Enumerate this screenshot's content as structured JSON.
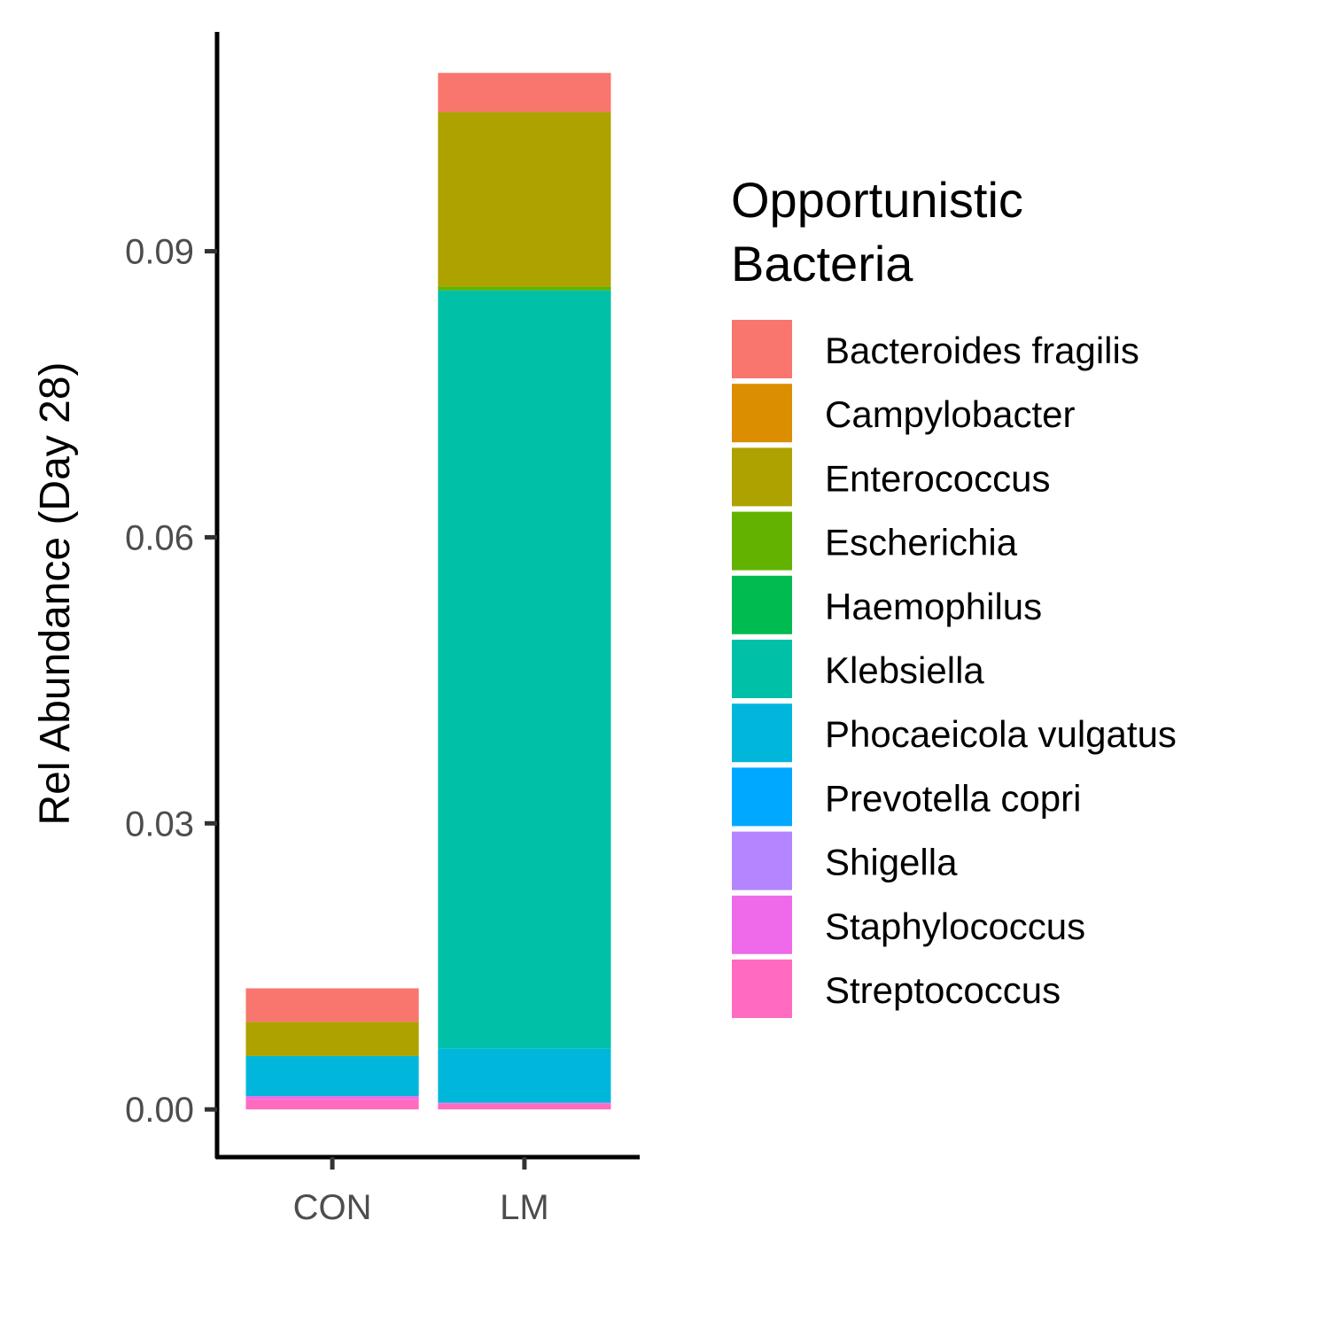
{
  "chart_data": {
    "type": "bar",
    "stacked": true,
    "categories": [
      "CON",
      "LM"
    ],
    "ylabel": "Rel Abundance (Day 28)",
    "xlabel": "",
    "ylim": [
      -0.005,
      0.113
    ],
    "yticks": [
      "0.00",
      "0.03",
      "0.06",
      "0.09"
    ],
    "grid": false,
    "legend": {
      "title_lines": [
        "Opportunistic",
        "Bacteria"
      ],
      "position": "right"
    },
    "series": [
      {
        "name": "Streptococcus",
        "color": "#FF6BC0",
        "values": [
          0.0011,
          0.0006
        ]
      },
      {
        "name": "Staphylococcus",
        "color": "#EE6AEB",
        "values": [
          0.0003,
          0.0001
        ]
      },
      {
        "name": "Shigella",
        "color": "#B385FF",
        "values": [
          0.0,
          0.0
        ]
      },
      {
        "name": "Prevotella copri",
        "color": "#00A8FF",
        "values": [
          0.0,
          0.0
        ]
      },
      {
        "name": "Phocaeicola vulgatus",
        "color": "#00B7DB",
        "values": [
          0.0042,
          0.0057
        ]
      },
      {
        "name": "Klebsiella",
        "color": "#00C0A8",
        "values": [
          0.0,
          0.0795
        ]
      },
      {
        "name": "Haemophilus",
        "color": "#00BB4F",
        "values": [
          0.0,
          0.0
        ]
      },
      {
        "name": "Escherichia",
        "color": "#64B200",
        "values": [
          0.0,
          0.0004
        ]
      },
      {
        "name": "Enterococcus",
        "color": "#AEA200",
        "values": [
          0.0036,
          0.0183
        ]
      },
      {
        "name": "Campylobacter",
        "color": "#DB8E00",
        "values": [
          0.0,
          0.0
        ]
      },
      {
        "name": "Bacteroides fragilis",
        "color": "#F8766D",
        "values": [
          0.0035,
          0.0041
        ]
      }
    ],
    "legend_order": [
      "Bacteroides fragilis",
      "Campylobacter",
      "Enterococcus",
      "Escherichia",
      "Haemophilus",
      "Klebsiella",
      "Phocaeicola vulgatus",
      "Prevotella copri",
      "Shigella",
      "Staphylococcus",
      "Streptococcus"
    ]
  }
}
